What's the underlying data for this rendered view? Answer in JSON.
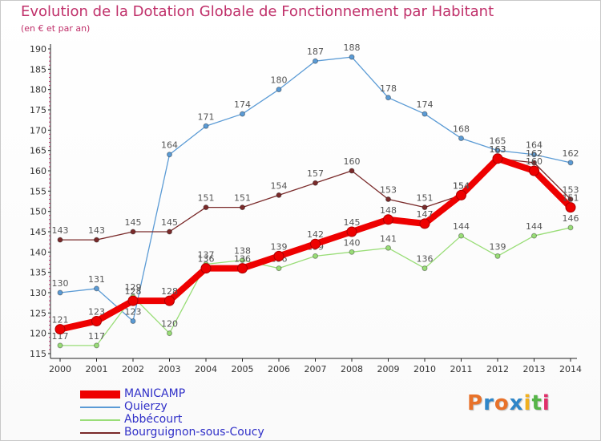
{
  "title": "Evolution de la Dotation Globale de Fonctionnement par Habitant",
  "subtitle": "(en € et par an)",
  "logo": {
    "text": "Proxiti",
    "colors": [
      "#e8722a",
      "#2f86c8",
      "#e8722a",
      "#2f86c8",
      "#f0b020",
      "#56b548",
      "#e0306a"
    ]
  },
  "chart_data": {
    "type": "line",
    "x": [
      2000,
      2001,
      2002,
      2003,
      2004,
      2005,
      2006,
      2007,
      2008,
      2009,
      2010,
      2011,
      2012,
      2013,
      2014
    ],
    "ylim": [
      115,
      190
    ],
    "yticks": [
      115,
      120,
      125,
      130,
      135,
      140,
      145,
      150,
      155,
      160,
      165,
      170,
      175,
      180,
      185,
      190
    ],
    "grid": false,
    "legend_position": "bottom-left",
    "series": [
      {
        "name": "Quierzy",
        "color": "#5b9bd5",
        "values": [
          130,
          131,
          123,
          164,
          171,
          174,
          180,
          187,
          188,
          178,
          174,
          168,
          165,
          164,
          162
        ]
      },
      {
        "name": "Abbécourt",
        "color": "#99dd77",
        "values": [
          117,
          117,
          129,
          120,
          137,
          138,
          136,
          139,
          140,
          141,
          136,
          144,
          139,
          144,
          146
        ]
      },
      {
        "name": "Bourguignon-sous-Coucy",
        "color": "#7a2a2a",
        "values": [
          143,
          143,
          145,
          145,
          151,
          151,
          154,
          157,
          160,
          153,
          151,
          154,
          163,
          162,
          153
        ]
      },
      {
        "name": "MANICAMP",
        "color": "#ee0000",
        "values": [
          121,
          123,
          128,
          128,
          136,
          136,
          139,
          142,
          145,
          148,
          147,
          154,
          163,
          160,
          151
        ]
      }
    ]
  }
}
